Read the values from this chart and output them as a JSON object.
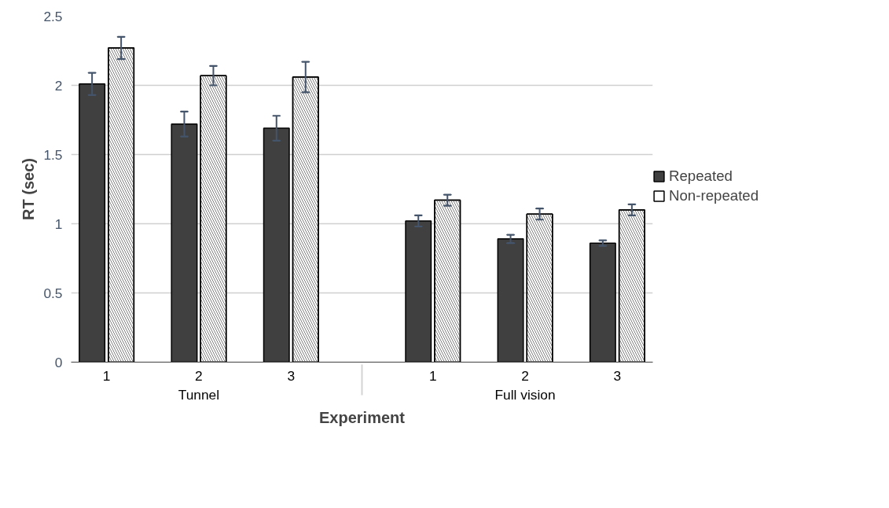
{
  "chart_data": {
    "type": "bar",
    "xlabel": "Experiment",
    "ylabel": "RT (sec)",
    "categories": [
      "1",
      "2",
      "3",
      "1",
      "2",
      "3"
    ],
    "annotations": [
      "Tunnel",
      "Full vision"
    ],
    "series": [
      {
        "name": "Repeated",
        "color": "#404040",
        "values": [
          2.01,
          1.72,
          1.69,
          1.02,
          0.89,
          0.86
        ],
        "errors": [
          0.08,
          0.09,
          0.09,
          0.04,
          0.03,
          0.02
        ]
      },
      {
        "name": "Non-repeated",
        "color": "#ffffff",
        "values": [
          2.27,
          2.07,
          2.06,
          1.17,
          1.07,
          1.1
        ],
        "errors": [
          0.08,
          0.07,
          0.11,
          0.04,
          0.04,
          0.04
        ]
      }
    ],
    "ylim": [
      0,
      2.5
    ],
    "yticks": [
      0,
      0.5,
      1,
      1.5,
      2,
      2.5
    ],
    "grid": "y",
    "legend": "right"
  }
}
